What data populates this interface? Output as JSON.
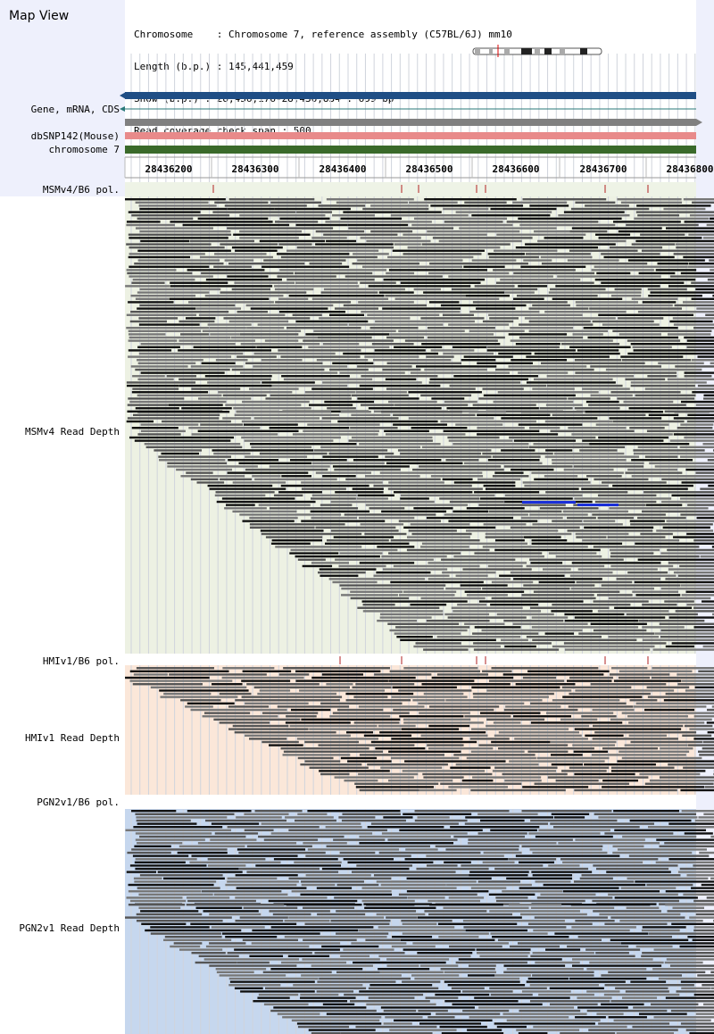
{
  "title": "Map View",
  "info": {
    "line1": "Chromosome    : Chromosome 7, reference assembly (C57BL/6J) mm10",
    "line2": "Length (b.p.) : 145,441,459",
    "line3": "Show (b.p.) : 28,436,176-28,436,834 : 659 bp",
    "line4": "Read coverage check span : 500"
  },
  "track_labels": {
    "gene": "Gene, mRNA, CDS",
    "dbsnp": "dbSNP142(Mouse)",
    "chrom": "chromosome 7",
    "msm_pol": "MSMv4/B6 pol.",
    "msm_depth": "MSMv4 Read Depth",
    "hmi_pol": "HMIv1/B6 pol.",
    "hmi_depth": "HMIv1 Read Depth",
    "pgn_pol": "PGN2v1/B6 pol.",
    "pgn_depth": "PGN2v1 Read Depth"
  },
  "ruler": {
    "ticks": [
      "28436200",
      "28436300",
      "28436400",
      "28436500",
      "28436600",
      "28436700",
      "28436800"
    ]
  },
  "colors": {
    "gene_bar": "#1f4e85",
    "gray_bar": "#808080",
    "dbsnp_bar": "#e88a8a",
    "chrom_bar": "#3a6a2a",
    "msm_bg": "#edf1e3",
    "hmi_bg": "#fbe7d9",
    "pgn_bg": "#c6d7ee",
    "sidebar_bg": "#eef0fc",
    "pol_mark": "#b22222"
  }
}
